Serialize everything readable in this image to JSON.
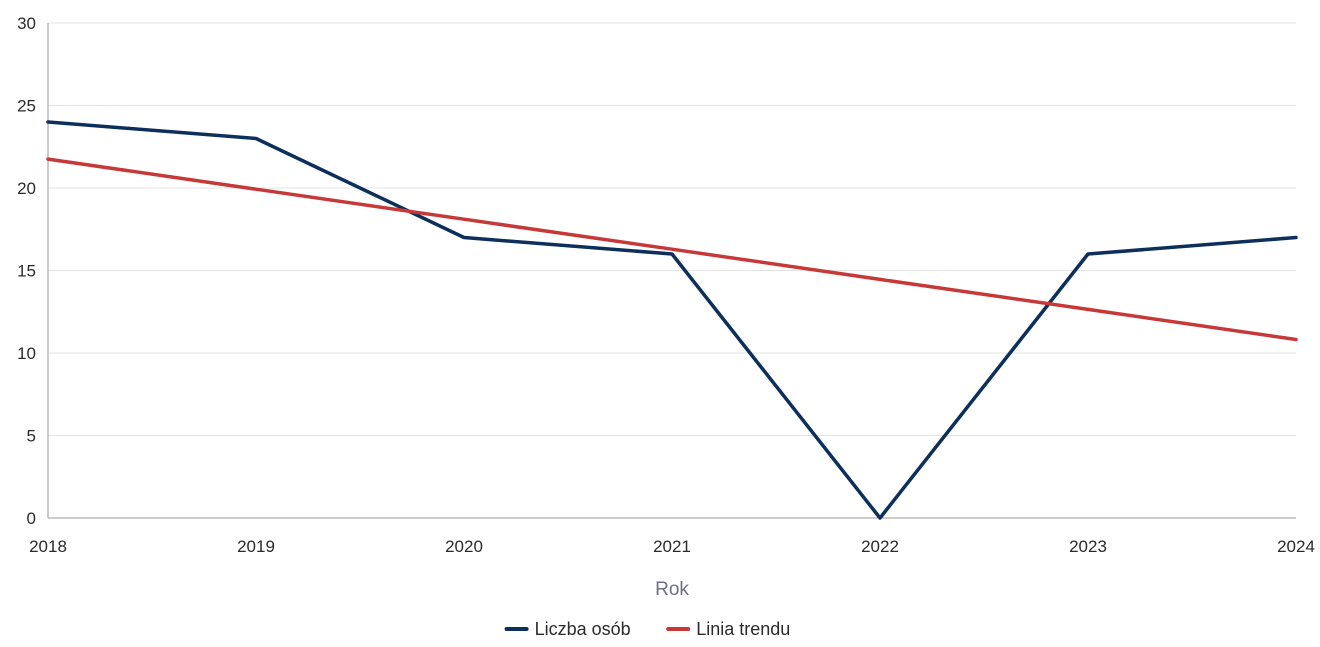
{
  "chart_data": {
    "type": "line",
    "title": "",
    "xlabel": "Rok",
    "ylabel": "",
    "x": [
      2018,
      2019,
      2020,
      2021,
      2022,
      2023,
      2024
    ],
    "ylim": [
      0,
      30
    ],
    "yticks": [
      0,
      5,
      10,
      15,
      20,
      25,
      30
    ],
    "grid": true,
    "legend_position": "bottom-center",
    "series": [
      {
        "name": "Liczba osób",
        "color": "#0d2f5c",
        "values": [
          24,
          23,
          17,
          16,
          0,
          16,
          17
        ]
      },
      {
        "name": "Linia trendu",
        "color": "#c73838",
        "values": [
          21.75,
          19.93,
          18.11,
          16.29,
          14.46,
          12.64,
          10.82
        ]
      }
    ]
  }
}
